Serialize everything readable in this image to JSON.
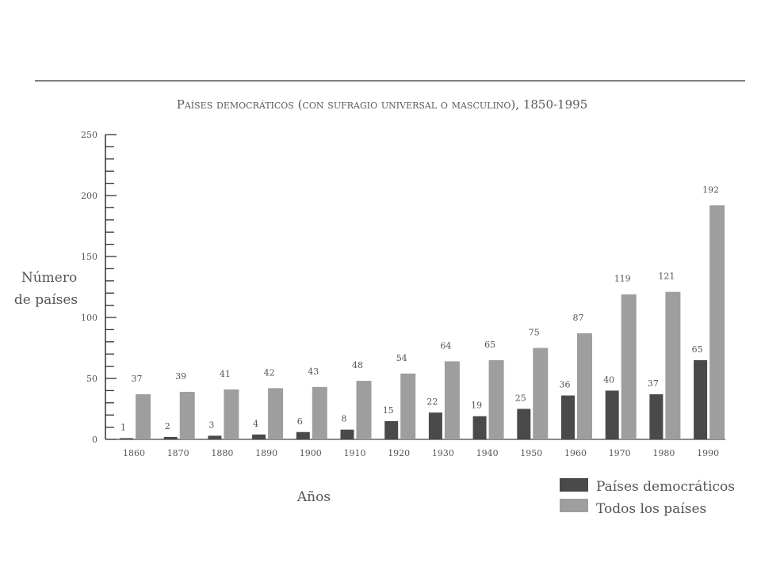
{
  "chart_data": {
    "type": "bar",
    "title": "Países democráticos (con sufragio universal o masculino), 1850-1995",
    "xlabel": "Años",
    "ylabel_line1": "Número",
    "ylabel_line2": "de países",
    "ylim": [
      0,
      250
    ],
    "yticks": [
      0,
      50,
      100,
      150,
      200,
      250
    ],
    "categories": [
      "1860",
      "1870",
      "1880",
      "1890",
      "1900",
      "1910",
      "1920",
      "1930",
      "1940",
      "1950",
      "1960",
      "1970",
      "1980",
      "1990"
    ],
    "series": [
      {
        "name": "Países democráticos",
        "color": "#4a4a4a",
        "values": [
          1,
          2,
          3,
          4,
          6,
          8,
          15,
          22,
          19,
          25,
          36,
          40,
          37,
          65
        ]
      },
      {
        "name": "Todos los países",
        "color": "#9e9e9e",
        "values": [
          37,
          39,
          41,
          42,
          43,
          48,
          54,
          64,
          65,
          75,
          87,
          119,
          121,
          192
        ]
      }
    ],
    "legend_position": "bottom-right",
    "grid": false
  }
}
